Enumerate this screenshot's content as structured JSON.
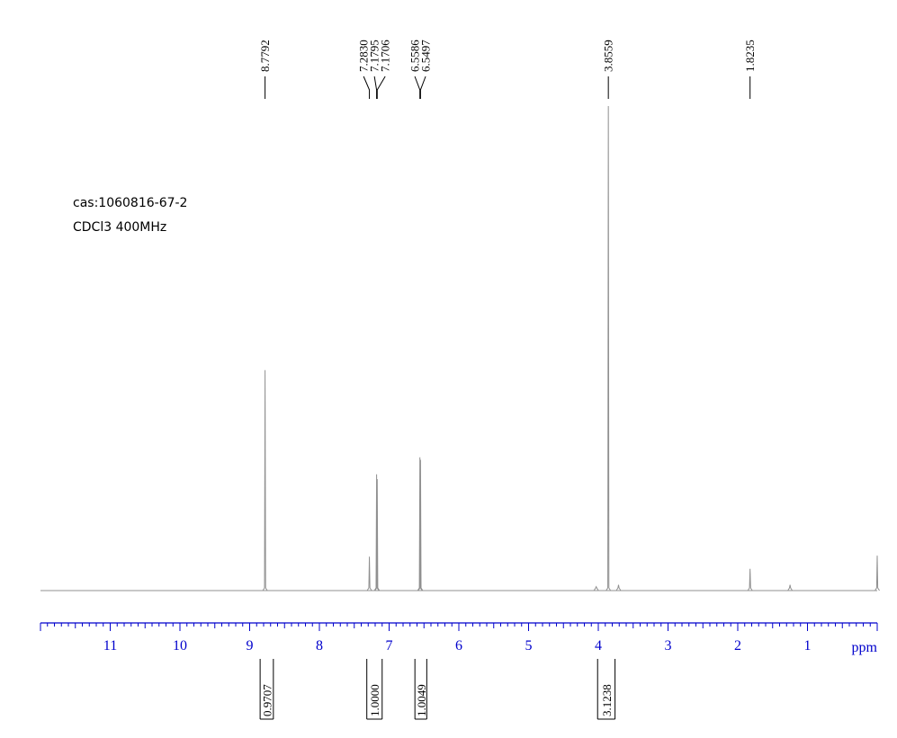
{
  "sample": {
    "cas_line": "cas:1060816-67-2",
    "solvent_line": "CDCl3 400MHz"
  },
  "chart_data": {
    "type": "line",
    "title": "",
    "xlabel": "ppm",
    "ylabel": "",
    "x_axis": {
      "reversed": true,
      "xlim": [
        12.0,
        0.0
      ],
      "major_ticks": [
        11,
        10,
        9,
        8,
        7,
        6,
        5,
        4,
        3,
        2,
        1
      ],
      "minor_step": 0.1
    },
    "y_relative_scale": [
      0,
      1
    ],
    "baseline_line_color": "#909090",
    "axis_color": "#0000cc",
    "peak_labels": [
      "8.7792",
      "7.2830",
      "7.1795",
      "7.1706",
      "6.5586",
      "6.5497",
      "3.8559",
      "1.8235"
    ],
    "peaks": [
      {
        "ppm": 8.7792,
        "height": 0.455,
        "label": "8.7792"
      },
      {
        "ppm": 7.283,
        "height": 0.07,
        "label": "7.2830"
      },
      {
        "ppm": 7.1795,
        "height": 0.24,
        "label": "7.1795"
      },
      {
        "ppm": 7.1706,
        "height": 0.23,
        "label": "7.1706"
      },
      {
        "ppm": 6.5586,
        "height": 0.275,
        "label": "6.5586"
      },
      {
        "ppm": 6.5497,
        "height": 0.27,
        "label": "6.5497"
      },
      {
        "ppm": 3.8559,
        "height": 1.0,
        "label": "3.8559"
      },
      {
        "ppm": 3.71,
        "height": 0.012,
        "label": ""
      },
      {
        "ppm": 4.03,
        "height": 0.008,
        "label": ""
      },
      {
        "ppm": 1.8235,
        "height": 0.045,
        "label": "1.8235"
      },
      {
        "ppm": 1.25,
        "height": 0.012,
        "label": ""
      },
      {
        "ppm": 0.0,
        "height": 0.072,
        "label": ""
      }
    ],
    "integrals": [
      {
        "from": 8.85,
        "to": 8.66,
        "value": "0.9707"
      },
      {
        "from": 7.32,
        "to": 7.1,
        "value": "1.0000"
      },
      {
        "from": 6.63,
        "to": 6.46,
        "value": "1.0049"
      },
      {
        "from": 4.01,
        "to": 3.76,
        "value": "3.1238"
      }
    ]
  }
}
